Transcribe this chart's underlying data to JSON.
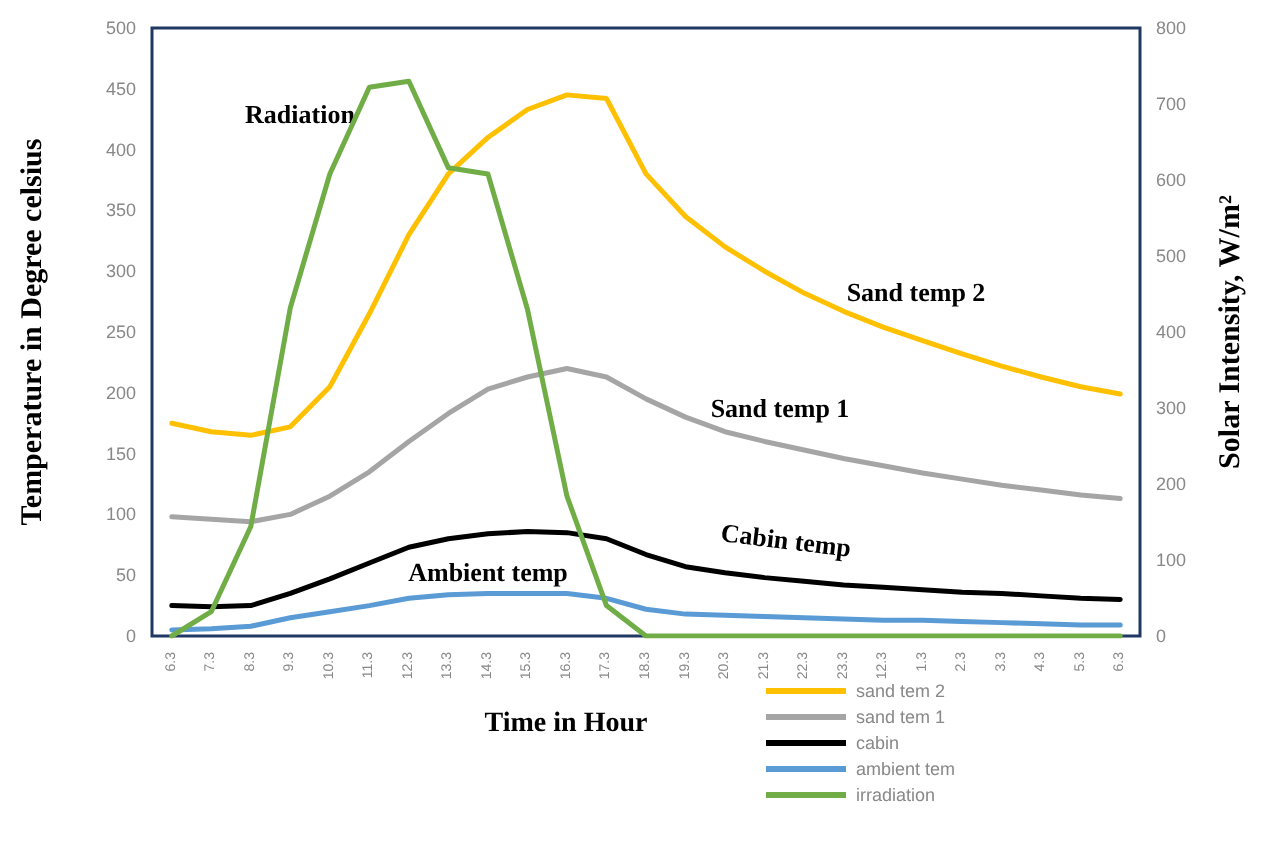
{
  "chart_data": {
    "type": "line",
    "xlabel": "Time in Hour",
    "ylabel": "Temperature in Degree celsius",
    "y2label": "Solar Intensity, W/m²",
    "categories": [
      "6.3",
      "7.3",
      "8.3",
      "9.3",
      "10.3",
      "11.3",
      "12.3",
      "13.3",
      "14.3",
      "15.3",
      "16.3",
      "17.3",
      "18.3",
      "19.3",
      "20.3",
      "21.3",
      "22.3",
      "23.3",
      "12.3",
      "1.3",
      "2.3",
      "3.3",
      "4.3",
      "5.3",
      "6.3"
    ],
    "ylim": [
      0,
      500
    ],
    "yticks": [
      0,
      50,
      100,
      150,
      200,
      250,
      300,
      350,
      400,
      450,
      500
    ],
    "y2lim": [
      0,
      800
    ],
    "y2ticks": [
      0,
      100,
      200,
      300,
      400,
      500,
      600,
      700,
      800
    ],
    "grid": false,
    "legend": "bottom right",
    "marker": "none",
    "line_style": "solid",
    "series": [
      {
        "name": "sand tem 2",
        "color": "#ffc000",
        "values": [
          175,
          168,
          165,
          172,
          205,
          265,
          330,
          380,
          410,
          433,
          445,
          442,
          380,
          345,
          320,
          300,
          282,
          267,
          254,
          243,
          232,
          222,
          213,
          205,
          199
        ]
      },
      {
        "name": "sand tem 1",
        "color": "#a5a5a5",
        "values": [
          98,
          96,
          94,
          100,
          115,
          135,
          160,
          183,
          203,
          213,
          220,
          213,
          195,
          180,
          168,
          160,
          153,
          146,
          140,
          134,
          129,
          124,
          120,
          116,
          113
        ]
      },
      {
        "name": "cabin",
        "color": "#000000",
        "values": [
          25,
          24,
          25,
          35,
          47,
          60,
          73,
          80,
          84,
          86,
          85,
          80,
          67,
          57,
          52,
          48,
          45,
          42,
          40,
          38,
          36,
          35,
          33,
          31,
          30
        ]
      },
      {
        "name": "ambient tem",
        "color": "#5b9bd5",
        "values": [
          5,
          6,
          8,
          15,
          20,
          25,
          31,
          34,
          35,
          35,
          35,
          31,
          22,
          18,
          17,
          16,
          15,
          14,
          13,
          13,
          12,
          11,
          10,
          9,
          9
        ]
      },
      {
        "name": "irradiation",
        "color": "#70ad47",
        "axis": "y2",
        "values": [
          0,
          32,
          144,
          432,
          608,
          722,
          730,
          616,
          608,
          430,
          184,
          40,
          0,
          0,
          0,
          0,
          0,
          0,
          0,
          0,
          0,
          0,
          0,
          0,
          0
        ]
      }
    ],
    "annotations": [
      "Radiation",
      "Ambient temp",
      "Sand temp 2",
      "Sand temp 1",
      "Cabin temp"
    ]
  }
}
